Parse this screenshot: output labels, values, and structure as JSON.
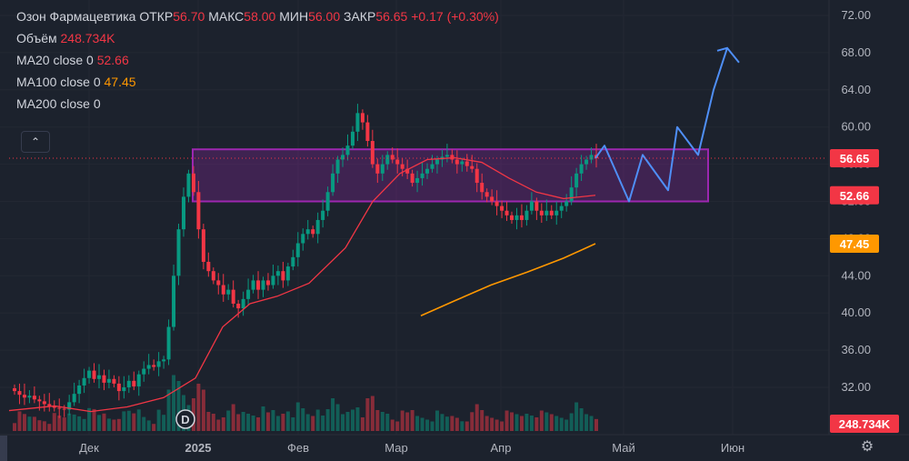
{
  "legend": {
    "symbol": "Озон Фармацевтика",
    "open_label": "ОТКР",
    "open": "56.70",
    "high_label": "МАКС",
    "high": "58.00",
    "low_label": "МИН",
    "low": "56.00",
    "close_label": "ЗАКР",
    "close": "56.65",
    "change": "+0.17 (+0.30%)",
    "volume_label": "Объём",
    "volume": "248.734K",
    "ma20_label": "MA20 close 0",
    "ma20": "52.66",
    "ma100_label": "MA100 close 0",
    "ma100": "47.45",
    "ma200_label": "MA200 close 0"
  },
  "collapse_icon": "chevron-up-icon",
  "settings_icon": "gear-icon",
  "colors": {
    "up": "#089981",
    "down": "#f23645",
    "ma20": "#f23645",
    "ma100": "#ff9800",
    "box": "#9c27b0",
    "arrow": "#4f8ff7",
    "bg": "#1c222d"
  },
  "chart_data": {
    "type": "candlestick",
    "y_ticks": [
      "72.00",
      "68.00",
      "64.00",
      "60.00",
      "56.00",
      "52.00",
      "48.00",
      "44.00",
      "40.00",
      "36.00",
      "32.00"
    ],
    "ylim": [
      29,
      73.5
    ],
    "x_labels": [
      "Дек",
      "2025",
      "Фев",
      "Мар",
      "Апр",
      "Май",
      "Июн"
    ],
    "price_tags": [
      {
        "value": "56.65",
        "level": 56.65,
        "color": "#f23645"
      },
      {
        "value": "52.66",
        "level": 52.66,
        "color": "#f23645"
      },
      {
        "value": "47.45",
        "level": 47.45,
        "color": "#ff9800"
      }
    ],
    "volume_tag": "248.734K",
    "event_marker": "D",
    "close_series": [
      31.6,
      31.2,
      30.9,
      31.1,
      30.7,
      30.5,
      30.2,
      30.0,
      29.8,
      29.7,
      29.6,
      30.4,
      31.3,
      32.2,
      33.0,
      33.8,
      32.9,
      33.3,
      32.5,
      32.9,
      32.4,
      31.6,
      32.0,
      32.7,
      32.1,
      33.4,
      34.0,
      34.4,
      34.2,
      34.8,
      35.0,
      38.5,
      44.0,
      49.0,
      52.5,
      55.0,
      53.0,
      49.0,
      45.5,
      44.5,
      43.5,
      43.0,
      42.0,
      42.5,
      41.0,
      40.5,
      41.5,
      42.5,
      43.5,
      42.5,
      43.5,
      43.0,
      44.0,
      44.5,
      43.5,
      45.0,
      46.0,
      47.5,
      48.5,
      49.0,
      48.5,
      50.0,
      51.0,
      53.0,
      55.0,
      56.5,
      57.0,
      58.0,
      59.5,
      61.5,
      60.5,
      58.5,
      56.0,
      55.0,
      56.0,
      57.0,
      56.5,
      56.0,
      55.5,
      55.0,
      54.0,
      54.5,
      55.0,
      55.5,
      56.0,
      56.5,
      56.8,
      57.0,
      56.5,
      56.0,
      56.3,
      55.8,
      55.5,
      54.0,
      53.0,
      52.5,
      52.0,
      51.5,
      51.0,
      50.5,
      50.0,
      50.5,
      50.0,
      51.0,
      52.0,
      51.0,
      50.5,
      51.0,
      50.5,
      51.0,
      51.5,
      52.0,
      53.5,
      55.0,
      56.0,
      56.5,
      57.0,
      56.65
    ],
    "ma20": [
      [
        10,
        29.5
      ],
      [
        60,
        30.0
      ],
      [
        100,
        29.4
      ],
      [
        140,
        29.9
      ],
      [
        180,
        30.9
      ],
      [
        215,
        33.0
      ],
      [
        245,
        38.5
      ],
      [
        275,
        41.0
      ],
      [
        305,
        41.8
      ],
      [
        340,
        43.2
      ],
      [
        380,
        47.0
      ],
      [
        410,
        52.0
      ],
      [
        440,
        55.0
      ],
      [
        470,
        56.5
      ],
      [
        500,
        56.7
      ],
      [
        530,
        56.2
      ],
      [
        560,
        54.5
      ],
      [
        590,
        53.0
      ],
      [
        620,
        52.3
      ],
      [
        655,
        52.66
      ]
    ],
    "ma100": [
      [
        463,
        39.7
      ],
      [
        500,
        41.3
      ],
      [
        540,
        43.0
      ],
      [
        580,
        44.4
      ],
      [
        620,
        45.9
      ],
      [
        655,
        47.45
      ]
    ],
    "box": {
      "y_top": 57.6,
      "y_bottom": 52.0,
      "x_start": "late Dec",
      "x_end": "early Jun"
    },
    "forecast_arrow": [
      [
        655,
        56.65
      ],
      [
        665,
        58.0
      ],
      [
        692,
        52.0
      ],
      [
        707,
        57.0
      ],
      [
        735,
        53.2
      ],
      [
        745,
        60.0
      ],
      [
        768,
        57.0
      ],
      [
        785,
        64.0
      ],
      [
        800,
        68.5
      ],
      [
        814,
        67.2
      ]
    ]
  }
}
